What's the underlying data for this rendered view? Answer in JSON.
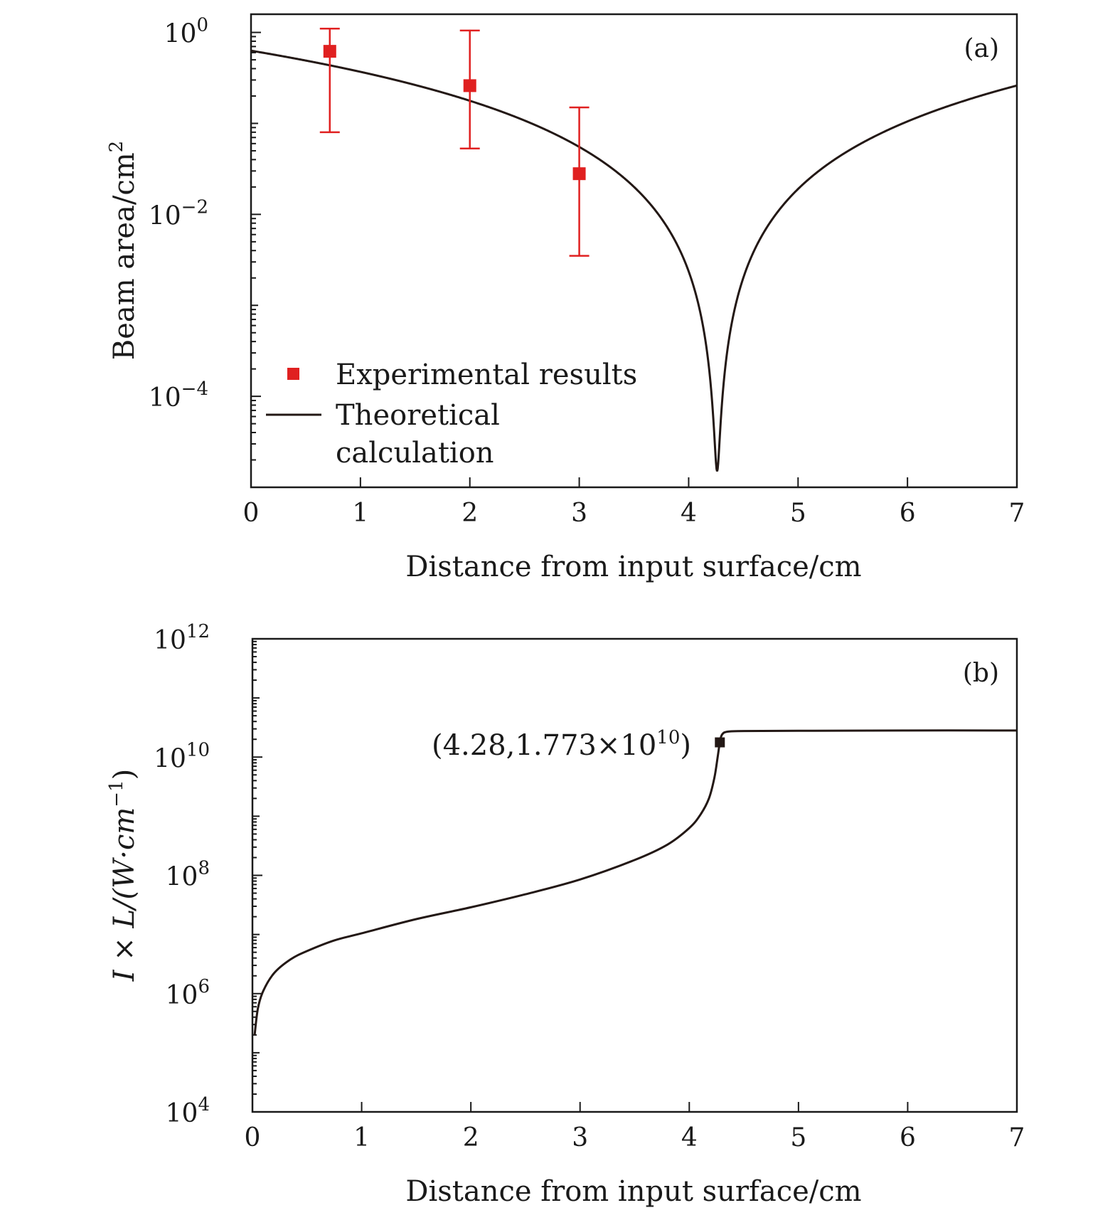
{
  "chart_data": [
    {
      "type": "scatter",
      "panel_label": "(a)",
      "xlabel": "Distance from input surface/cm",
      "ylabel": "Beam area/cm",
      "ylabel_sup": "2",
      "xlim": [
        0,
        7
      ],
      "ylim_log10": [
        -5,
        0.2
      ],
      "yscale": "log",
      "x_ticks": [
        "0",
        "1",
        "2",
        "3",
        "4",
        "5",
        "6",
        "7"
      ],
      "y_ticks": [
        {
          "base": "10",
          "exp": "0",
          "log": 0
        },
        {
          "base": "10",
          "exp": "−2",
          "log": -2
        },
        {
          "base": "10",
          "exp": "−4",
          "log": -4
        }
      ],
      "series": [
        {
          "name": "Experimental results",
          "kind": "markers",
          "color": "#e02020",
          "points": [
            {
              "x": 0.72,
              "y": 0.62,
              "y_low": 0.08,
              "y_high": 1.1
            },
            {
              "x": 2.0,
              "y": 0.26,
              "y_low": 0.053,
              "y_high": 1.05
            },
            {
              "x": 3.0,
              "y": 0.028,
              "y_low": 0.0035,
              "y_high": 0.15
            }
          ]
        },
        {
          "name_line1": "Theoretical",
          "name_line2": "calculation",
          "kind": "line",
          "color": "#231815",
          "model": {
            "a0": 0.63,
            "z_focus": 4.26,
            "a_min": 1.5e-05
          }
        }
      ]
    },
    {
      "type": "line",
      "panel_label": "(b)",
      "xlabel": "Distance from input surface/cm",
      "ylabel": "I × L/(W·cm",
      "ylabel_sup": "−1",
      "ylabel_close": ")",
      "xlim": [
        0,
        7
      ],
      "ylim_log10": [
        4,
        12
      ],
      "yscale": "log",
      "x_ticks": [
        "0",
        "1",
        "2",
        "3",
        "4",
        "5",
        "6",
        "7"
      ],
      "y_ticks": [
        {
          "base": "10",
          "exp": "4",
          "log": 4
        },
        {
          "base": "10",
          "exp": "6",
          "log": 6
        },
        {
          "base": "10",
          "exp": "8",
          "log": 8
        },
        {
          "base": "10",
          "exp": "10",
          "log": 10
        },
        {
          "base": "10",
          "exp": "12",
          "log": 12
        }
      ],
      "series": [
        {
          "name": "I × L",
          "kind": "line",
          "color": "#231815",
          "points_log10": [
            [
              0.02,
              5.3
            ],
            [
              0.05,
              5.75
            ],
            [
              0.1,
              6.05
            ],
            [
              0.2,
              6.35
            ],
            [
              0.35,
              6.58
            ],
            [
              0.5,
              6.72
            ],
            [
              0.75,
              6.9
            ],
            [
              1.0,
              7.02
            ],
            [
              1.5,
              7.26
            ],
            [
              2.0,
              7.46
            ],
            [
              2.5,
              7.68
            ],
            [
              3.0,
              7.93
            ],
            [
              3.5,
              8.26
            ],
            [
              3.8,
              8.52
            ],
            [
              4.0,
              8.8
            ],
            [
              4.1,
              9.02
            ],
            [
              4.18,
              9.3
            ],
            [
              4.23,
              9.65
            ],
            [
              4.26,
              10.0
            ],
            [
              4.28,
              10.25
            ],
            [
              4.3,
              10.38
            ],
            [
              4.35,
              10.43
            ],
            [
              4.5,
              10.44
            ],
            [
              5.0,
              10.445
            ],
            [
              6.0,
              10.45
            ],
            [
              7.0,
              10.45
            ]
          ]
        }
      ],
      "annotation": {
        "x": 4.28,
        "log10_y": 10.249,
        "text": "(4.28,1.773×10",
        "text_sup": "10",
        "text_close": ")"
      }
    }
  ]
}
